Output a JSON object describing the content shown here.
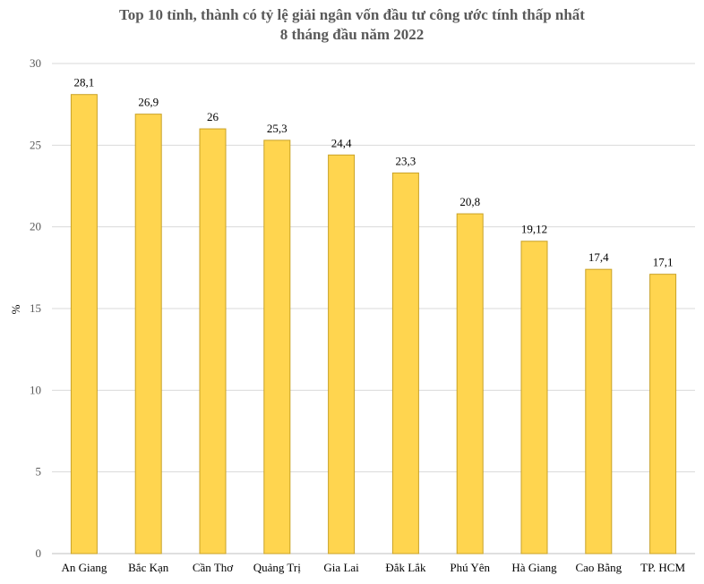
{
  "chart_data": {
    "type": "bar",
    "title_line1": "Top 10 tỉnh, thành có tỷ lệ giải ngân vốn đầu tư công ước tính thấp nhất",
    "title_line2": "8 tháng đầu năm 2022",
    "xlabel": "",
    "ylabel": "%",
    "ylim": [
      0,
      30
    ],
    "yticks": [
      0,
      5,
      10,
      15,
      20,
      25,
      30
    ],
    "categories": [
      "An Giang",
      "Bắc Kạn",
      "Cần Thơ",
      "Quảng Trị",
      "Gia Lai",
      "Đắk Lắk",
      "Phú Yên",
      "Hà Giang",
      "Cao Bằng",
      "TP. HCM"
    ],
    "values": [
      28.1,
      26.9,
      26,
      25.3,
      24.4,
      23.3,
      20.8,
      19.12,
      17.4,
      17.1
    ],
    "data_labels": [
      "28,1",
      "26,9",
      "26",
      "25,3",
      "24,4",
      "23,3",
      "20,8",
      "19,12",
      "17,4",
      "17,1"
    ],
    "grid": true,
    "legend": "none",
    "colors": {
      "bar_fill": "#FFD54F",
      "bar_stroke": "#C9A227",
      "grid": "#D9D9D9",
      "axis": "#BFBFBF"
    }
  }
}
